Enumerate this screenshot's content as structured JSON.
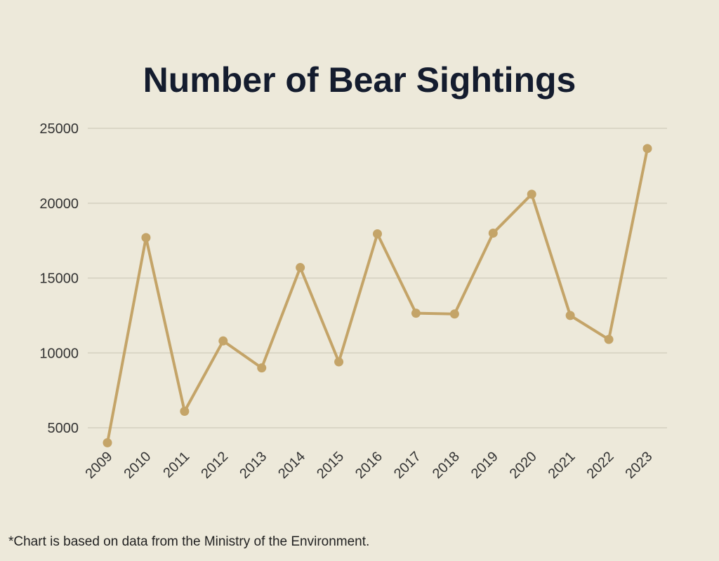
{
  "chart_data": {
    "type": "line",
    "title": "Number of Bear Sightings",
    "xlabel": "",
    "ylabel": "",
    "x": [
      "2009",
      "2010",
      "2011",
      "2012",
      "2013",
      "2014",
      "2015",
      "2016",
      "2017",
      "2018",
      "2019",
      "2020",
      "2021",
      "2022",
      "2023"
    ],
    "y_ticks": [
      "5000",
      "10000",
      "15000",
      "20000",
      "25000"
    ],
    "ylim": [
      4000,
      25000
    ],
    "grid": true,
    "series": [
      {
        "values": [
          4000,
          17700,
          6100,
          10800,
          9000,
          15700,
          9400,
          17950,
          12650,
          12600,
          18000,
          20600,
          12500,
          10900,
          23650
        ]
      }
    ],
    "color": "#c4a468"
  },
  "footnote": "*Chart is based on data from the Ministry of the Environment."
}
